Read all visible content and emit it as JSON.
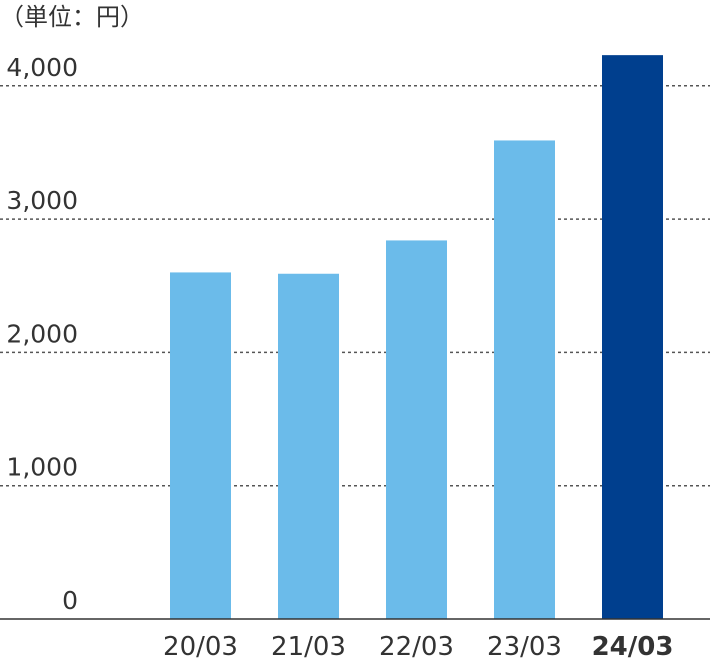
{
  "chart_data": {
    "type": "bar",
    "unit_label": "（単位：円）",
    "categories": [
      "20/03",
      "21/03",
      "22/03",
      "23/03",
      "24/03"
    ],
    "values": [
      2600,
      2590,
      2840,
      3590,
      4230
    ],
    "highlight_category": "24/03",
    "ylim": [
      0,
      4000
    ],
    "y_ticks": [
      {
        "value": 0,
        "label": "0"
      },
      {
        "value": 1000,
        "label": "1,000"
      },
      {
        "value": 2000,
        "label": "2,000"
      },
      {
        "value": 3000,
        "label": "3,000"
      },
      {
        "value": 4000,
        "label": "4,000"
      }
    ],
    "grid": true,
    "grid_style": "dotted",
    "colors": {
      "bar": "#6bbbea",
      "highlight_bar": "#003f8e",
      "text": "#333333",
      "grid": "#555555",
      "axis": "#333333"
    }
  }
}
